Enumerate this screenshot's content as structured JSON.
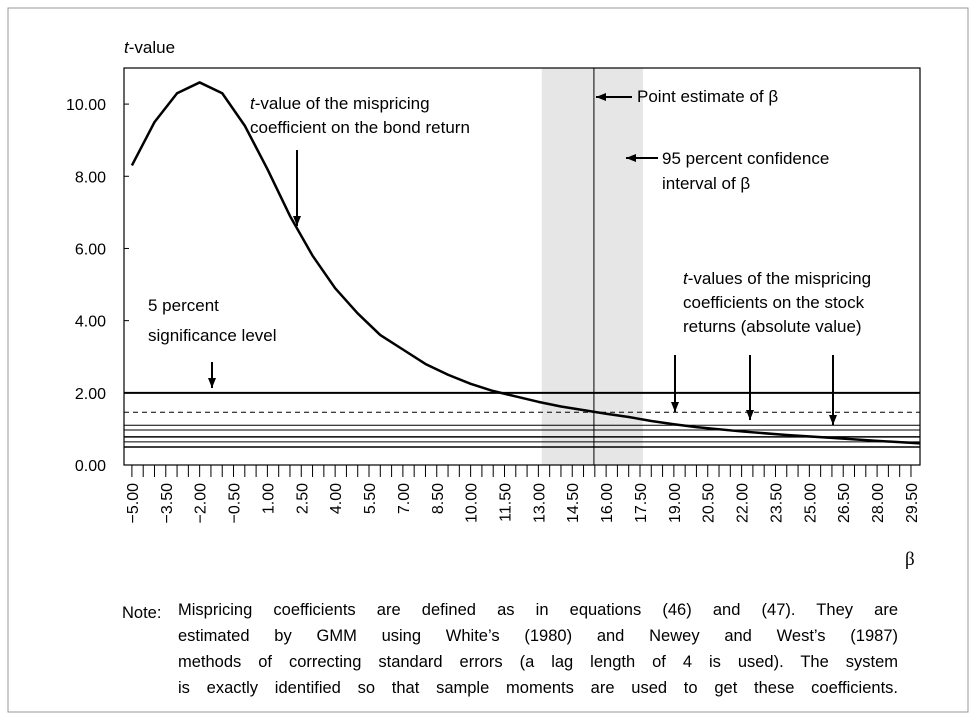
{
  "chart_data": {
    "type": "line",
    "ylabel": "t-value",
    "xlabel": "β",
    "x": [
      -5,
      -4,
      -3,
      -2,
      -1,
      0,
      1,
      2,
      3,
      4,
      5,
      6,
      7,
      8,
      9,
      10,
      11,
      12,
      13,
      14,
      15,
      16,
      17,
      18,
      19,
      20,
      22,
      24,
      26,
      28,
      29.9
    ],
    "series": [
      {
        "name": "t-value of the mispricing coefficient on the bond return",
        "color": "#000000",
        "values": [
          8.3,
          9.5,
          10.3,
          10.6,
          10.3,
          9.4,
          8.2,
          6.9,
          5.8,
          4.9,
          4.2,
          3.6,
          3.2,
          2.8,
          2.5,
          2.25,
          2.05,
          1.9,
          1.75,
          1.62,
          1.52,
          1.42,
          1.33,
          1.22,
          1.13,
          1.05,
          0.93,
          0.83,
          0.75,
          0.67,
          0.6
        ]
      }
    ],
    "reference_lines": [
      {
        "value": 2.0,
        "style": "solid",
        "width": 2
      },
      {
        "value": 1.46,
        "style": "dashed",
        "width": 1
      },
      {
        "value": 1.1,
        "style": "solid",
        "width": 1
      },
      {
        "value": 0.97,
        "style": "solid",
        "width": 1
      },
      {
        "value": 0.78,
        "style": "solid",
        "width": 1.5
      },
      {
        "value": 0.64,
        "style": "solid",
        "width": 1
      },
      {
        "value": 0.5,
        "style": "solid",
        "width": 1.5
      }
    ],
    "point_estimate": 15.46,
    "confidence_interval": [
      13.15,
      17.63
    ],
    "band_color": "#e6e6e6",
    "xlim": [
      -5.35,
      29.9
    ],
    "ylim": [
      0,
      11
    ],
    "yticks": [
      {
        "value": 0,
        "label": "0.00"
      },
      {
        "value": 2,
        "label": "2.00"
      },
      {
        "value": 4,
        "label": "4.00"
      },
      {
        "value": 6,
        "label": "6.00"
      },
      {
        "value": 8,
        "label": "8.00"
      },
      {
        "value": 10,
        "label": "10.00"
      }
    ],
    "xticks": [
      {
        "value": -5,
        "label": "−5.00"
      },
      {
        "value": -3.5,
        "label": "−3.50"
      },
      {
        "value": -2,
        "label": "−2.00"
      },
      {
        "value": -0.5,
        "label": "−0.50"
      },
      {
        "value": 1,
        "label": "1.00"
      },
      {
        "value": 2.5,
        "label": "2.50"
      },
      {
        "value": 4,
        "label": "4.00"
      },
      {
        "value": 5.5,
        "label": "5.50"
      },
      {
        "value": 7,
        "label": "7.00"
      },
      {
        "value": 8.5,
        "label": "8.50"
      },
      {
        "value": 10,
        "label": "10.00"
      },
      {
        "value": 11.5,
        "label": "11.50"
      },
      {
        "value": 13,
        "label": "13.00"
      },
      {
        "value": 14.5,
        "label": "14.50"
      },
      {
        "value": 16,
        "label": "16.00"
      },
      {
        "value": 17.5,
        "label": "17.50"
      },
      {
        "value": 19,
        "label": "19.00"
      },
      {
        "value": 20.5,
        "label": "20.50"
      },
      {
        "value": 22,
        "label": "22.00"
      },
      {
        "value": 23.5,
        "label": "23.50"
      },
      {
        "value": 25,
        "label": "25.00"
      },
      {
        "value": 26.5,
        "label": "26.50"
      },
      {
        "value": 28,
        "label": "28.00"
      },
      {
        "value": 29.5,
        "label": "29.50"
      }
    ],
    "xminor_ticks": [
      -4.5,
      -4,
      -3,
      -2.5,
      -1.5,
      -1,
      0,
      0.5,
      1.5,
      2,
      3,
      3.5,
      4.5,
      5,
      6,
      6.5,
      7.5,
      8,
      9,
      9.5,
      10.5,
      11,
      12,
      12.5,
      13.5,
      14,
      15,
      15.5,
      16.5,
      17,
      18,
      18.5,
      19.5,
      20,
      21,
      21.5,
      22.5,
      23,
      24,
      24.5,
      25.5,
      26,
      27,
      27.5,
      28.5,
      29
    ],
    "annotations": {
      "bond": [
        "t-value of the mispricing",
        "coefficient on the bond return"
      ],
      "point": [
        "Point estimate of β"
      ],
      "ci": [
        "95 percent confidence",
        "interval of β"
      ],
      "stock": [
        "t-values of the mispricing",
        "coefficients on the stock",
        "returns (absolute value)"
      ],
      "sig": [
        "5 percent",
        "significance level"
      ]
    }
  },
  "note": {
    "label": "Note:",
    "lines": [
      "Mispricing coefficients are defined as in equations (46) and (47). They are",
      "estimated by GMM using White’s (1980) and Newey and West’s (1987)",
      "methods of correcting standard errors (a lag length of 4 is used). The system",
      "is exactly identified so that sample moments are used to get these coefficients."
    ]
  }
}
